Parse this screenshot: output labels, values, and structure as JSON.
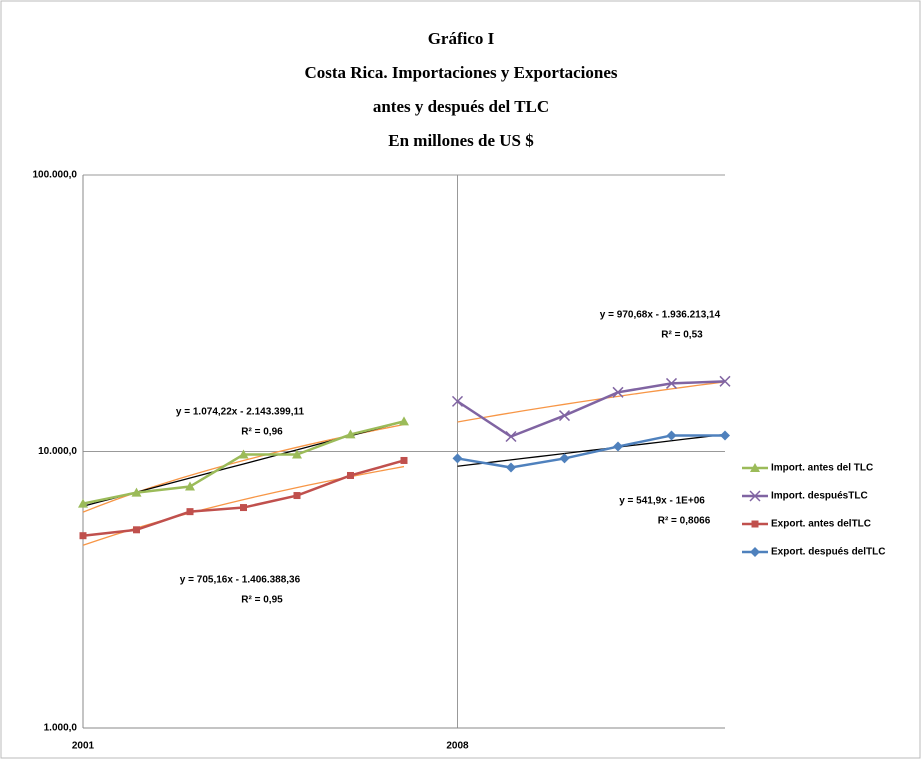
{
  "chart_data": {
    "type": "line",
    "title": [
      "Gráfico I",
      "Costa Rica. Importaciones y Exportaciones",
      "antes y después del TLC",
      "En millones de US $"
    ],
    "log_y": true,
    "grid": true,
    "legend": "right",
    "xlim": [
      2001,
      2013
    ],
    "xticks": [
      2001,
      2008
    ],
    "ylim": [
      1000,
      100000
    ],
    "yticks": [
      {
        "value": 100000,
        "label": "100.000,0"
      },
      {
        "value": 10000,
        "label": "10.000,0"
      },
      {
        "value": 1000,
        "label": "1.000,0"
      }
    ],
    "series": [
      {
        "name": "Import. antes del TLC",
        "color": "#9bbb59",
        "marker": "triangle",
        "trend": [
          "linear",
          "exponential"
        ],
        "x": [
          2001,
          2002,
          2003,
          2004,
          2005,
          2006,
          2007
        ],
        "values": [
          6480,
          7100,
          7470,
          9750,
          9750,
          11530,
          12850
        ]
      },
      {
        "name": "Import. despuésTLC",
        "color": "#8064a2",
        "marker": "x",
        "trend": [
          "linear"
        ],
        "x": [
          2008,
          2009,
          2010,
          2011,
          2012,
          2013
        ],
        "values": [
          15180,
          11330,
          13490,
          16370,
          17630,
          17940
        ]
      },
      {
        "name": "Export. antes delTLC",
        "color": "#c0504d",
        "marker": "square",
        "trend": [
          "linear"
        ],
        "x": [
          2001,
          2002,
          2003,
          2004,
          2005,
          2006,
          2007
        ],
        "values": [
          4960,
          5210,
          6060,
          6270,
          6930,
          8190,
          9280
        ]
      },
      {
        "name": "Export. después delTLC",
        "color": "#4f81bd",
        "marker": "diamond",
        "trend": [
          "exponential"
        ],
        "x": [
          2008,
          2009,
          2010,
          2011,
          2012,
          2013
        ],
        "values": [
          9440,
          8750,
          9440,
          10420,
          11430,
          11430
        ]
      }
    ],
    "trend_colors": {
      "linear": "#f79646",
      "exponential": "#000000"
    },
    "annotations": [
      [
        "y = 1.074,22x - 2.143.399,11",
        "R² = 0,96"
      ],
      [
        "y = 705,16x - 1.406.388,36",
        "R² = 0,95"
      ],
      [
        "y = 970,68x - 1.936.213,14",
        "R² = 0,53"
      ],
      [
        "y = 541,9x - 1E+06",
        "R² = 0,8066"
      ]
    ]
  }
}
